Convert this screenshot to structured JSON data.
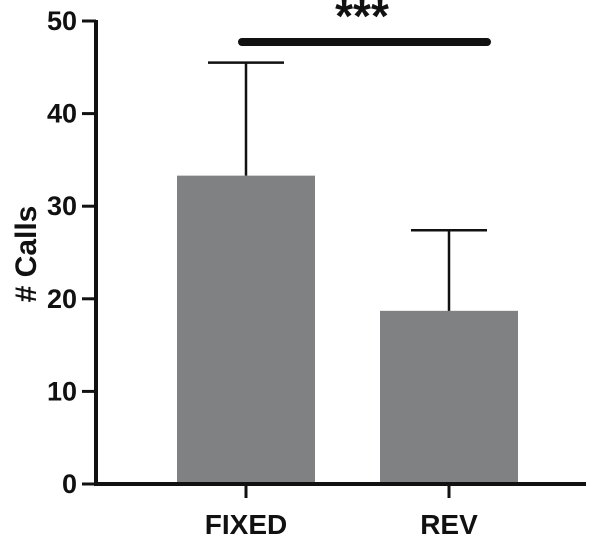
{
  "chart_data": {
    "type": "bar",
    "categories": [
      "FIXED",
      "REV"
    ],
    "values": [
      33.3,
      18.7
    ],
    "error_upper": [
      45.5,
      27.4
    ],
    "ylabel": "# Calls",
    "xlabel": "",
    "ylim": [
      0,
      50
    ],
    "yticks": [
      "0",
      "10",
      "20",
      "30",
      "40",
      "50"
    ],
    "significance": {
      "label": "***",
      "between": [
        "FIXED",
        "REV"
      ]
    },
    "colors": {
      "bar": "#808183",
      "axis": "#111111"
    },
    "grid": false,
    "legend": "none"
  }
}
